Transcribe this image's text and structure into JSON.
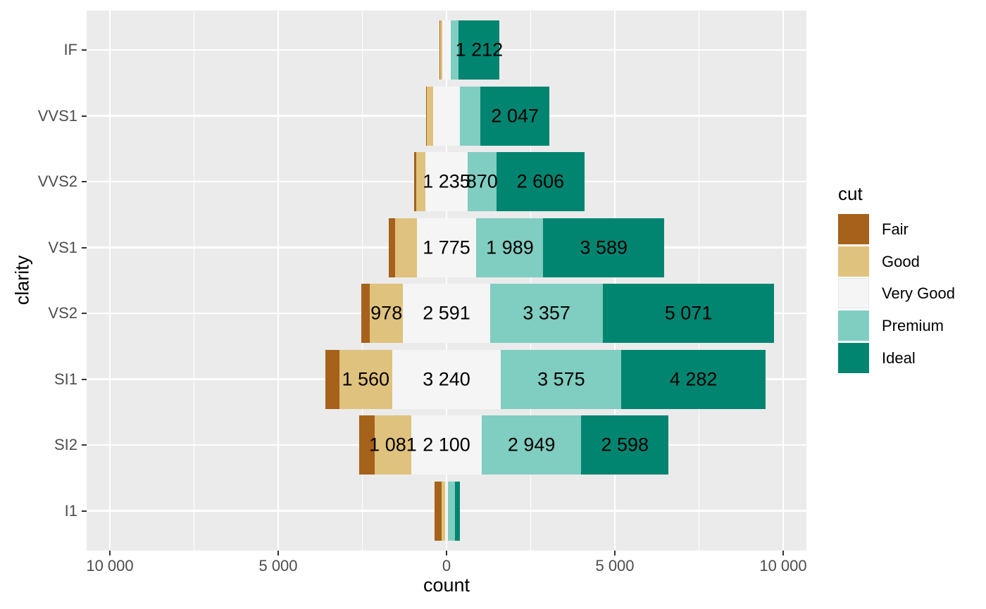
{
  "chart_data": {
    "type": "bar",
    "variant": "diverging-stacked-horizontal",
    "title": "",
    "xlabel": "count",
    "ylabel": "clarity",
    "categories": [
      "IF",
      "VVS1",
      "VVS2",
      "VS1",
      "VS2",
      "SI1",
      "SI2",
      "I1"
    ],
    "series": [
      {
        "name": "Fair",
        "color": "#a6611a",
        "role": "left-outer",
        "values": [
          9,
          17,
          69,
          170,
          261,
          408,
          466,
          210
        ]
      },
      {
        "name": "Good",
        "color": "#dfc27d",
        "role": "left-inner",
        "values": [
          71,
          186,
          286,
          648,
          978,
          1560,
          1081,
          96
        ]
      },
      {
        "name": "Very Good",
        "color": "#f5f5f5",
        "role": "center",
        "values": [
          268,
          789,
          1235,
          1775,
          2591,
          3240,
          2100,
          84
        ]
      },
      {
        "name": "Premium",
        "color": "#80cdc1",
        "role": "right-inner",
        "values": [
          230,
          616,
          870,
          1989,
          3357,
          3575,
          2949,
          205
        ]
      },
      {
        "name": "Ideal",
        "color": "#018571",
        "role": "right-outer",
        "values": [
          1212,
          2047,
          2606,
          3589,
          5071,
          4282,
          2598,
          146
        ]
      }
    ],
    "bar_label_threshold": 800,
    "bar_label_format": "thousands separated by space",
    "x_ticks": [
      {
        "value": -10000,
        "label": "10 000"
      },
      {
        "value": -5000,
        "label": "5 000"
      },
      {
        "value": 0,
        "label": "0"
      },
      {
        "value": 5000,
        "label": "5 000"
      },
      {
        "value": 10000,
        "label": "10 000"
      }
    ],
    "x_minor_ticks": [
      -7500,
      -2500,
      2500,
      7500
    ],
    "xlim": [
      -10690,
      10690
    ],
    "legend": {
      "title": "cut",
      "position": "right",
      "entries": [
        "Fair",
        "Good",
        "Very Good",
        "Premium",
        "Ideal"
      ]
    },
    "style": {
      "panel_bg": "#ebebeb",
      "grid_color": "#ffffff",
      "axis_text_color": "#4d4d4d",
      "tick_mark_color": "#333333",
      "bar_label_color": "#000000"
    }
  }
}
